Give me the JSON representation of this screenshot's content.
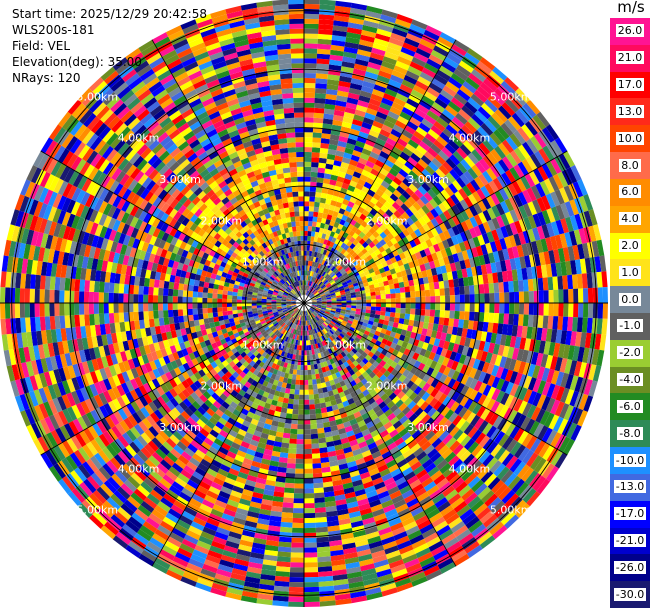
{
  "info": {
    "start_time": "Start time: 2025/12/29 20:42:58",
    "instrument": "WLS200s-181",
    "field": "Field: VEL",
    "elevation": "Elevation(deg): 35.00",
    "nrays": "NRays: 120"
  },
  "ppi": {
    "ring_labels": [
      "1.00km",
      "2.00km",
      "3.00km",
      "4.00km",
      "5.00km"
    ],
    "nrays": 120,
    "ngates": 60,
    "max_range_km": 5.2
  },
  "colorbar": {
    "unit": "m/s",
    "ticks": [
      "26.0",
      "21.0",
      "17.0",
      "13.0",
      "10.0",
      "8.0",
      "6.0",
      "4.0",
      "2.0",
      "1.0",
      "0.0",
      "-1.0",
      "-2.0",
      "-4.0",
      "-6.0",
      "-8.0",
      "-10.0",
      "-13.0",
      "-17.0",
      "-21.0",
      "-26.0",
      "-30.0"
    ],
    "colors": [
      "#ff1493",
      "#ff0a5e",
      "#ff0000",
      "#ff2a1a",
      "#ff4500",
      "#ff6b4a",
      "#ff8c00",
      "#ffa500",
      "#ffff00",
      "#ffe31a",
      "#778899",
      "#606060",
      "#9acd32",
      "#6b8e23",
      "#228b22",
      "#2e8b57",
      "#1e90ff",
      "#4169e1",
      "#0000ff",
      "#0000cd",
      "#00008b",
      "#191970"
    ]
  }
}
